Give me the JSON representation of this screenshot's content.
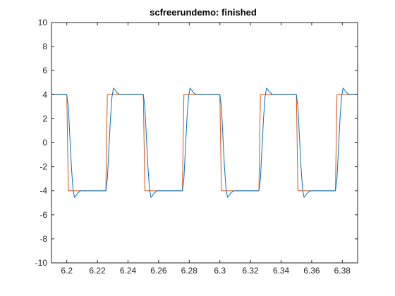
{
  "chart_data": {
    "type": "line",
    "title": "scfreerundemo: finished",
    "xlabel": "",
    "ylabel": "",
    "xlim": [
      6.19,
      6.39
    ],
    "ylim": [
      -10,
      10
    ],
    "grid": false,
    "xticks": [
      6.2,
      6.22,
      6.24,
      6.26,
      6.28,
      6.3,
      6.32,
      6.34,
      6.36,
      6.38
    ],
    "xtick_labels": [
      "6.2",
      "6.22",
      "6.24",
      "6.26",
      "6.28",
      "6.3",
      "6.32",
      "6.34",
      "6.36",
      "6.38"
    ],
    "yticks": [
      -10,
      -8,
      -6,
      -4,
      -2,
      0,
      2,
      4,
      6,
      8,
      10
    ],
    "ytick_labels": [
      "-10",
      "-8",
      "-6",
      "-4",
      "-2",
      "0",
      "2",
      "4",
      "6",
      "8",
      "10"
    ],
    "series": [
      {
        "color": "#D95319",
        "x": [
          6.19,
          6.2,
          6.201,
          6.2255,
          6.2265,
          6.25,
          6.251,
          6.2755,
          6.2765,
          6.3,
          6.301,
          6.3255,
          6.3265,
          6.35,
          6.351,
          6.3755,
          6.3765,
          6.39
        ],
        "y": [
          4,
          4,
          -4,
          -4,
          4,
          4,
          -4,
          -4,
          4,
          4,
          -4,
          -4,
          4,
          4,
          -4,
          -4,
          4,
          4
        ]
      },
      {
        "color": "#0072BD",
        "x": [
          6.19,
          6.2,
          6.201,
          6.202,
          6.203,
          6.204,
          6.205,
          6.206,
          6.207,
          6.209,
          6.212,
          6.2255,
          6.2265,
          6.2275,
          6.2285,
          6.2295,
          6.2305,
          6.2315,
          6.2325,
          6.2345,
          6.2375,
          6.25,
          6.251,
          6.252,
          6.253,
          6.254,
          6.255,
          6.256,
          6.257,
          6.259,
          6.262,
          6.2755,
          6.2765,
          6.2775,
          6.2785,
          6.2795,
          6.2805,
          6.2815,
          6.2825,
          6.2845,
          6.2875,
          6.3,
          6.301,
          6.302,
          6.303,
          6.304,
          6.305,
          6.306,
          6.307,
          6.309,
          6.312,
          6.3255,
          6.3265,
          6.3275,
          6.3285,
          6.3295,
          6.3305,
          6.3315,
          6.3325,
          6.3345,
          6.3375,
          6.35,
          6.351,
          6.352,
          6.353,
          6.354,
          6.355,
          6.356,
          6.357,
          6.359,
          6.362,
          6.3755,
          6.3765,
          6.3775,
          6.3785,
          6.3795,
          6.3805,
          6.3815,
          6.3825,
          6.3845,
          6.3875,
          6.39
        ],
        "y": [
          4,
          4,
          3,
          0.5,
          -2,
          -3.8,
          -4.55,
          -4.4,
          -4.2,
          -4,
          -4,
          -4,
          -3,
          -0.5,
          2,
          3.8,
          4.55,
          4.4,
          4.2,
          4,
          4,
          4,
          3,
          0.5,
          -2,
          -3.8,
          -4.55,
          -4.4,
          -4.2,
          -4,
          -4,
          -4,
          -3,
          -0.5,
          2,
          3.8,
          4.55,
          4.4,
          4.2,
          4,
          4,
          4,
          3,
          0.5,
          -2,
          -3.8,
          -4.55,
          -4.4,
          -4.2,
          -4,
          -4,
          -4,
          -3,
          -0.5,
          2,
          3.8,
          4.55,
          4.4,
          4.2,
          4,
          4,
          4,
          3,
          0.5,
          -2,
          -3.8,
          -4.55,
          -4.4,
          -4.2,
          -4,
          -4,
          -4,
          -3,
          -0.5,
          2,
          3.8,
          4.55,
          4.4,
          4.2,
          4,
          4,
          4
        ]
      }
    ]
  }
}
